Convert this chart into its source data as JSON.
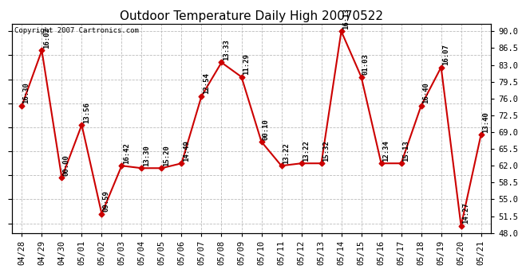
{
  "title": "Outdoor Temperature Daily High 20070522",
  "copyright": "Copyright 2007 Cartronics.com",
  "dates": [
    "04/28",
    "04/29",
    "04/30",
    "05/01",
    "05/02",
    "05/03",
    "05/04",
    "05/05",
    "05/06",
    "05/07",
    "05/08",
    "05/09",
    "05/10",
    "05/11",
    "05/12",
    "05/13",
    "05/14",
    "05/15",
    "05/16",
    "05/17",
    "05/18",
    "05/19",
    "05/20",
    "05/21"
  ],
  "values": [
    74.5,
    86.0,
    59.5,
    70.5,
    52.0,
    62.0,
    61.5,
    61.5,
    62.5,
    76.5,
    83.5,
    80.5,
    67.0,
    62.0,
    62.5,
    62.5,
    90.0,
    80.5,
    62.5,
    62.5,
    74.5,
    82.5,
    49.5,
    68.5
  ],
  "time_labels": [
    "16:30",
    "16:02",
    "00:00",
    "13:56",
    "09:59",
    "16:42",
    "13:30",
    "15:20",
    "14:49",
    "12:54",
    "13:33",
    "11:29",
    "00:10",
    "13:22",
    "13:22",
    "15:32",
    "16:13",
    "01:03",
    "12:34",
    "15:13",
    "16:40",
    "16:07",
    "14:27",
    "13:40"
  ],
  "ylim": [
    48.0,
    91.5
  ],
  "yticks_right": [
    48.0,
    51.5,
    55.0,
    58.5,
    62.0,
    65.5,
    69.0,
    72.5,
    76.0,
    79.5,
    83.0,
    86.5,
    90.0
  ],
  "line_color": "#cc0000",
  "marker_color": "#cc0000",
  "grid_color": "#bbbbbb",
  "background_color": "#ffffff",
  "title_fontsize": 11,
  "label_fontsize": 6.5,
  "copyright_fontsize": 6.5,
  "tick_fontsize": 7.5
}
